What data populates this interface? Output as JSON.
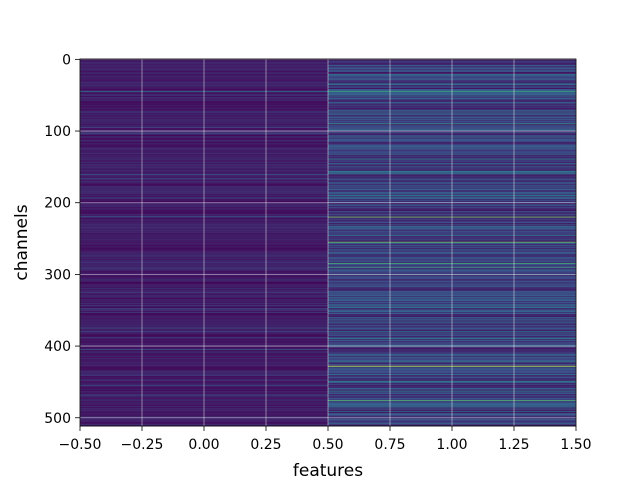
{
  "chart_data": {
    "type": "heatmap",
    "title": "",
    "xlabel": "features",
    "ylabel": "channels",
    "xlim": [
      -0.5,
      1.5
    ],
    "ylim": [
      511.5,
      -0.5
    ],
    "rows": 512,
    "columns": [
      {
        "x": 0,
        "description": "mostly low values with sparse faint lines"
      },
      {
        "x": 1,
        "description": "many medium-intensity stripes, several bright lines"
      }
    ],
    "x_ticks": [
      "-0.50",
      "-0.25",
      "0.00",
      "0.25",
      "0.50",
      "0.75",
      "1.00",
      "1.25",
      "1.50"
    ],
    "x_tick_values": [
      -0.5,
      -0.25,
      0.0,
      0.25,
      0.5,
      0.75,
      1.0,
      1.25,
      1.5
    ],
    "y_ticks": [
      "0",
      "100",
      "200",
      "300",
      "400",
      "500"
    ],
    "y_tick_values": [
      0,
      100,
      200,
      300,
      400,
      500
    ],
    "grid": true,
    "colormap": "viridis",
    "highlights": {
      "column0": [
        {
          "row": 45,
          "v": 0.35
        },
        {
          "row": 160,
          "v": 0.25
        },
        {
          "row": 375,
          "v": 0.3
        },
        {
          "row": 405,
          "v": 0.3
        }
      ],
      "column1": [
        {
          "row": 45,
          "v": 0.6
        },
        {
          "row": 90,
          "v": 0.55
        },
        {
          "row": 190,
          "v": 0.45
        },
        {
          "row": 220,
          "v": 0.8
        },
        {
          "row": 255,
          "v": 0.78
        },
        {
          "row": 285,
          "v": 0.65
        },
        {
          "row": 290,
          "v": 0.6
        },
        {
          "row": 428,
          "v": 0.92
        },
        {
          "row": 476,
          "v": 0.7
        }
      ]
    }
  }
}
